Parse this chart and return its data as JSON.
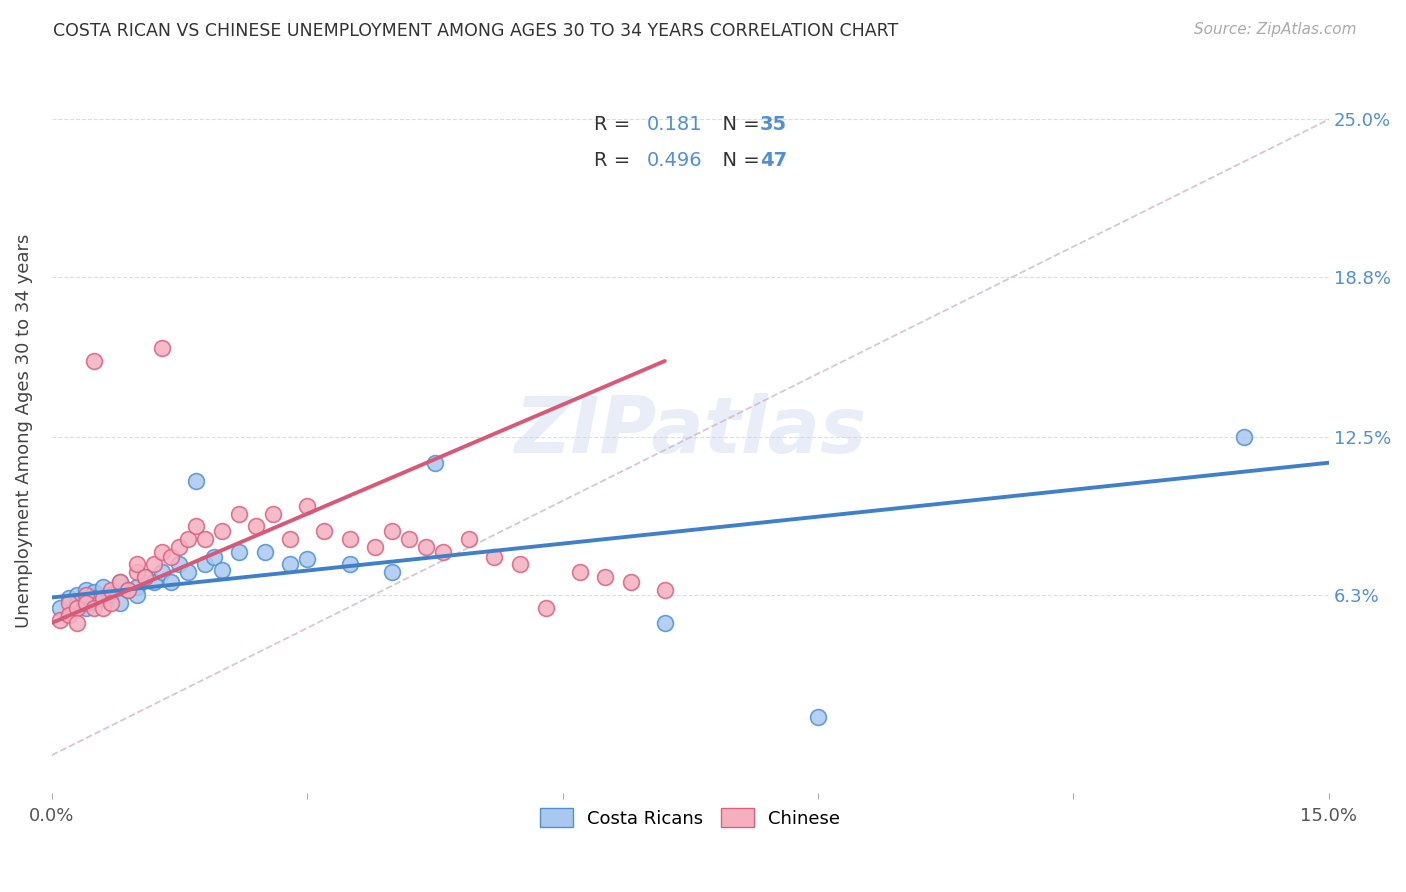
{
  "title": "COSTA RICAN VS CHINESE UNEMPLOYMENT AMONG AGES 30 TO 34 YEARS CORRELATION CHART",
  "source": "Source: ZipAtlas.com",
  "ylabel": "Unemployment Among Ages 30 to 34 years",
  "xlim": [
    0.0,
    0.15
  ],
  "ylim": [
    -0.015,
    0.27
  ],
  "ytick_positions": [
    0.063,
    0.125,
    0.188,
    0.25
  ],
  "ytick_labels": [
    "6.3%",
    "12.5%",
    "18.8%",
    "25.0%"
  ],
  "color_blue": "#a8c8f0",
  "color_pink": "#f5b0c0",
  "color_blue_dark": "#5090d0",
  "color_pink_dark": "#d86080",
  "color_blue_line": "#4080c8",
  "color_pink_line": "#d85878",
  "cr_x": [
    0.001,
    0.002,
    0.003,
    0.003,
    0.004,
    0.004,
    0.005,
    0.005,
    0.006,
    0.007,
    0.008,
    0.008,
    0.009,
    0.01,
    0.01,
    0.011,
    0.012,
    0.013,
    0.014,
    0.015,
    0.016,
    0.017,
    0.018,
    0.019,
    0.02,
    0.022,
    0.025,
    0.028,
    0.03,
    0.035,
    0.04,
    0.045,
    0.072,
    0.09,
    0.14
  ],
  "cr_y": [
    0.058,
    0.062,
    0.06,
    0.063,
    0.065,
    0.058,
    0.064,
    0.062,
    0.066,
    0.063,
    0.068,
    0.06,
    0.065,
    0.066,
    0.063,
    0.07,
    0.068,
    0.072,
    0.068,
    0.075,
    0.072,
    0.108,
    0.075,
    0.078,
    0.073,
    0.08,
    0.08,
    0.075,
    0.077,
    0.075,
    0.072,
    0.115,
    0.052,
    0.015,
    0.125
  ],
  "cn_x": [
    0.001,
    0.002,
    0.002,
    0.003,
    0.003,
    0.004,
    0.004,
    0.005,
    0.005,
    0.006,
    0.006,
    0.007,
    0.007,
    0.008,
    0.009,
    0.01,
    0.01,
    0.011,
    0.012,
    0.013,
    0.013,
    0.014,
    0.015,
    0.016,
    0.017,
    0.018,
    0.02,
    0.022,
    0.024,
    0.026,
    0.028,
    0.03,
    0.032,
    0.035,
    0.038,
    0.04,
    0.042,
    0.044,
    0.046,
    0.049,
    0.052,
    0.055,
    0.058,
    0.062,
    0.065,
    0.068,
    0.072
  ],
  "cn_y": [
    0.053,
    0.06,
    0.055,
    0.058,
    0.052,
    0.063,
    0.06,
    0.058,
    0.155,
    0.062,
    0.058,
    0.065,
    0.06,
    0.068,
    0.065,
    0.072,
    0.075,
    0.07,
    0.075,
    0.08,
    0.16,
    0.078,
    0.082,
    0.085,
    0.09,
    0.085,
    0.088,
    0.095,
    0.09,
    0.095,
    0.085,
    0.098,
    0.088,
    0.085,
    0.082,
    0.088,
    0.085,
    0.082,
    0.08,
    0.085,
    0.078,
    0.075,
    0.058,
    0.072,
    0.07,
    0.068,
    0.065
  ],
  "cr_trend_x": [
    0.0,
    0.15
  ],
  "cr_trend_y": [
    0.062,
    0.115
  ],
  "cn_trend_x": [
    0.0,
    0.072
  ],
  "cn_trend_y": [
    0.052,
    0.155
  ],
  "ref_line_x": [
    0.0,
    0.15
  ],
  "ref_line_y": [
    0.0,
    0.25
  ]
}
